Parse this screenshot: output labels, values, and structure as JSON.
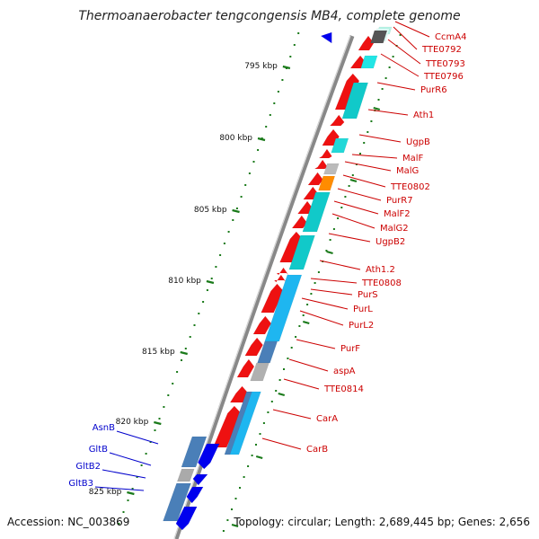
{
  "title": "Thermoanaerobacter tengcongensis MB4, complete genome",
  "footer": {
    "accession": "Accession: NC_003869",
    "topology": "Topology: circular; Length: 2,689,445 bp; Genes: 2,656"
  },
  "colors": {
    "red_label": "#cc0000",
    "blue_label": "#0000cc",
    "tick": "#1a7a1a",
    "backbone": "#888888"
  },
  "kbp_labels": [
    "795 kbp",
    "800 kbp",
    "805 kbp",
    "810 kbp",
    "815 kbp",
    "820 kbp",
    "825 kbp"
  ],
  "right_genes": [
    "CcmA4",
    "TTE0792",
    "TTE0793",
    "TTE0796",
    "PurR6",
    "Ath1",
    "UgpB",
    "MalF",
    "MalG",
    "TTE0802",
    "PurR7",
    "MalF2",
    "MalG2",
    "UgpB2",
    "Ath1.2",
    "TTE0808",
    "PurS",
    "PurL",
    "PurL2",
    "PurF",
    "aspA",
    "TTE0814",
    "CarA",
    "CarB"
  ],
  "left_genes": [
    "AsnB",
    "GltB",
    "GltB2",
    "GltB3"
  ]
}
